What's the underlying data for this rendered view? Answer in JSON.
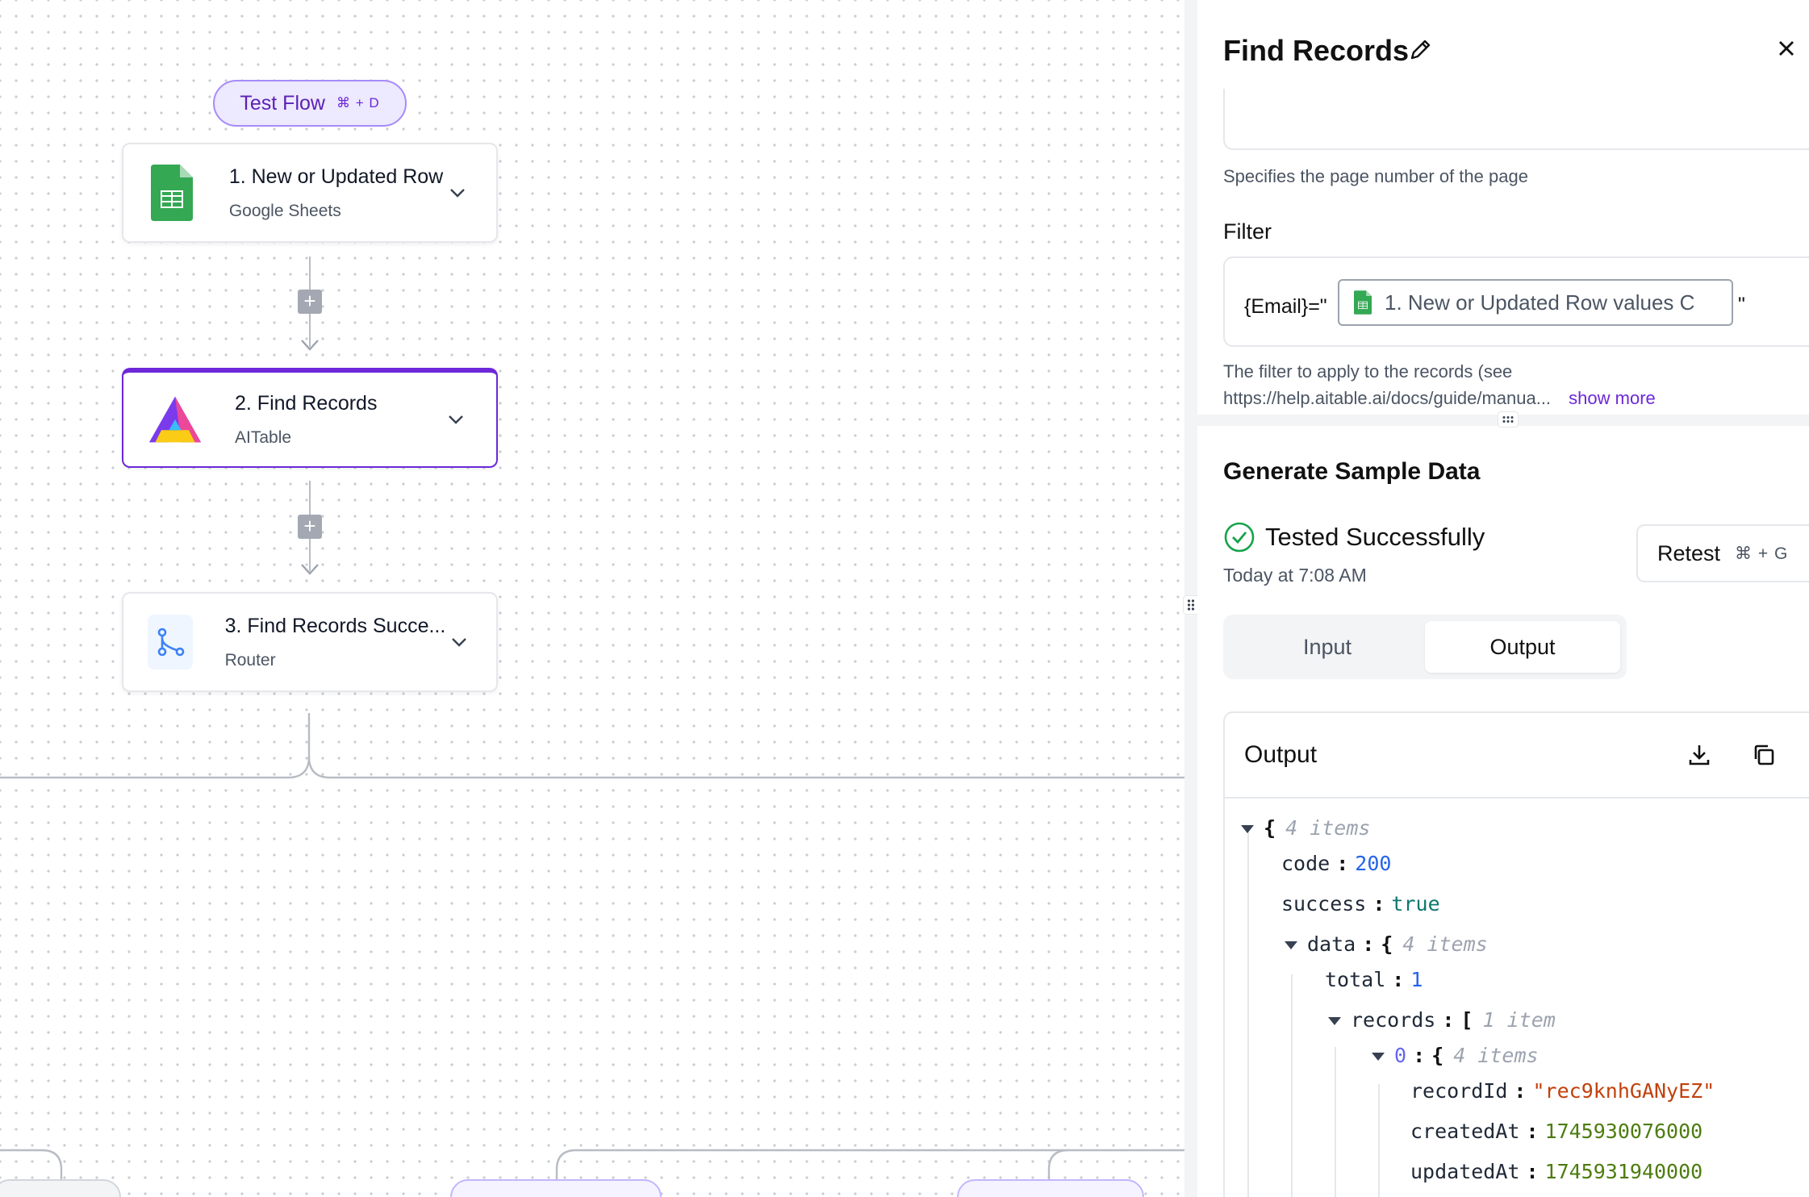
{
  "canvas": {
    "test_flow": {
      "label": "Test Flow",
      "shortcut": "⌘ + D"
    },
    "nodes": [
      {
        "title": "1. New or Updated Row",
        "subtitle": "Google Sheets",
        "icon": "google-sheets-icon"
      },
      {
        "title": "2. Find Records",
        "subtitle": "AITable",
        "icon": "aitable-icon"
      },
      {
        "title": "3. Find Records Succe...",
        "subtitle": "Router",
        "icon": "router-icon"
      }
    ]
  },
  "panel": {
    "title": "Find Records",
    "page_hint": "Specifies the page number of the page",
    "filter": {
      "label": "Filter",
      "prefix": "{Email}=\"",
      "token": "1. New or Updated Row values C",
      "suffix": "\"",
      "hint_line1": "The filter to apply to the records (see",
      "hint_line2": "https://help.aitable.ai/docs/guide/manua...",
      "show_more": "show more"
    },
    "sample": {
      "title": "Generate Sample Data",
      "status": "Tested Successfully",
      "time": "Today at 7:08 AM",
      "retest_label": "Retest",
      "retest_shortcut": "⌘ + G"
    },
    "tabs": [
      "Input",
      "Output"
    ],
    "output": {
      "title": "Output",
      "root_meta": "4 items",
      "code_key": "code",
      "code_val": "200",
      "success_key": "success",
      "success_val": "true",
      "data_key": "data",
      "data_meta": "4 items",
      "total_key": "total",
      "total_val": "1",
      "records_key": "records",
      "records_meta": "1 item",
      "item_index": "0",
      "item_meta": "4 items",
      "recordId_key": "recordId",
      "recordId_val": "\"rec9knhGANyEZ\"",
      "createdAt_key": "createdAt",
      "createdAt_val": "1745930076000",
      "updatedAt_key": "updatedAt",
      "updatedAt_val": "1745931940000"
    }
  },
  "colors": {
    "accent": "#6d28d9",
    "success": "#16a34a"
  }
}
